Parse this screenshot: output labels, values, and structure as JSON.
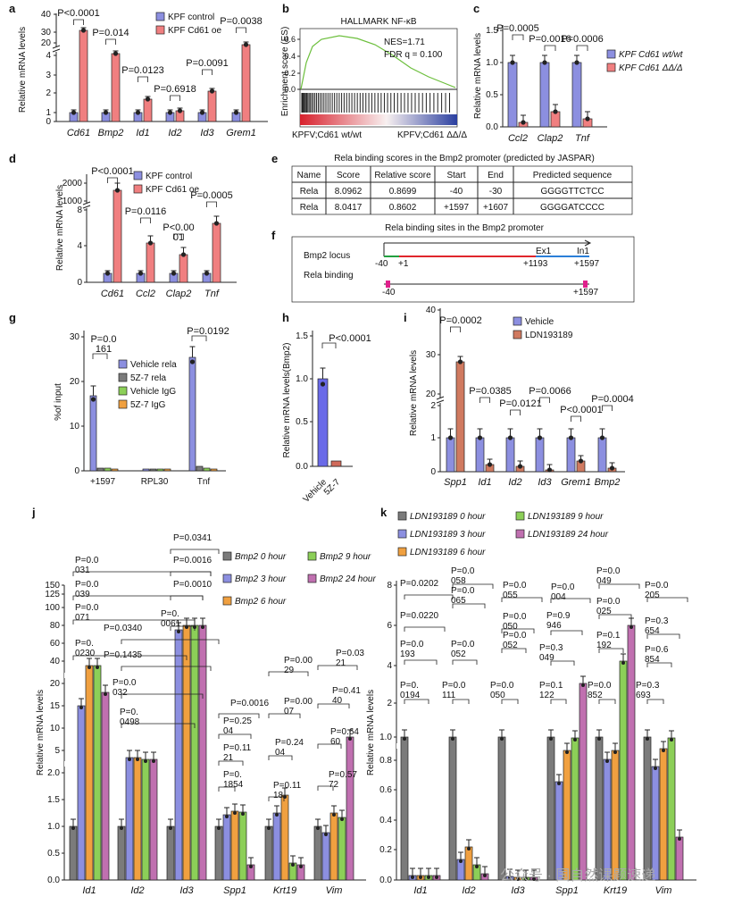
{
  "panels": {
    "a": {
      "label": "a",
      "ylabel": "Relative mRNA levels",
      "legend": [
        "KPF control",
        "KPF Cd61 oe"
      ],
      "yticks": [
        "0",
        "1",
        "2",
        "3",
        "4",
        "20",
        "30",
        "40"
      ],
      "genes": [
        "Cd61",
        "Bmp2",
        "Id1",
        "Id2",
        "Id3",
        "Grem1"
      ],
      "pvals": [
        "P<0.0001",
        "P=0.014",
        "P=0.0123",
        "P=0.6918",
        "P=0.0091",
        "P=0.0038"
      ],
      "colors": [
        "#8c8fe0",
        "#f07f80"
      ]
    },
    "b": {
      "label": "b",
      "title": "HALLMARK NF-κB",
      "ylabel": "Enrichment score (ES)",
      "nes": "NES=1.71",
      "fdr": "FDR q = 0.100",
      "yticks": [
        "0.0",
        "0.2",
        "0.4",
        "0.6"
      ],
      "left": "KPFV;Cd61 wt/wt",
      "right": "KPFV;Cd61 ΔΔ/Δ"
    },
    "c": {
      "label": "c",
      "ylabel": "Relative mRNA levels",
      "legend": [
        "KPF Cd61 wt/wt",
        "KPF Cd61 ΔΔ/Δ"
      ],
      "yticks": [
        "0.0",
        "0.5",
        "1.0",
        "1.5"
      ],
      "genes": [
        "Ccl2",
        "Clap2",
        "Tnf"
      ],
      "pvals": [
        "P=0.0005",
        "P=0.0016",
        "P=0.0006"
      ]
    },
    "d": {
      "label": "d",
      "ylabel": "Relative mRNA levels",
      "legend": [
        "KPF control",
        "KPF Cd61 oe"
      ],
      "yticks": [
        "0",
        "4",
        "8",
        "1000",
        "2000"
      ],
      "genes": [
        "Cd61",
        "Ccl2",
        "Clap2",
        "Tnf"
      ],
      "pvals": [
        "P<0.0001",
        "P=0.0116",
        "P<0.00\n01",
        "P=0.0005"
      ]
    },
    "e": {
      "label": "e",
      "title": "Rela binding scores in the Bmp2 promoter (predicted by JASPAR)",
      "headers": [
        "Name",
        "Score",
        "Relative score",
        "Start",
        "End",
        "Predicted sequence"
      ],
      "rows": [
        [
          "Rela",
          "8.0962",
          "0.8699",
          "-40",
          "-30",
          "GGGGTTCTCC"
        ],
        [
          "Rela",
          "8.0417",
          "0.8602",
          "+1597",
          "+1607",
          "GGGGATCCCC"
        ]
      ]
    },
    "f": {
      "label": "f",
      "title": "Rela binding sites in the Bmp2 promoter",
      "locus": "Bmp2 locus",
      "binding": "Rela binding",
      "ex1": "Ex1",
      "in1": "In1",
      "pos": [
        "-40",
        "+1",
        "+1193",
        "+1597",
        "-40",
        "+1597"
      ]
    },
    "g": {
      "label": "g",
      "ylabel": "%of input",
      "legend": [
        "Vehicle rela",
        "5Z-7 rela",
        "Vehicle IgG",
        "5Z-7 IgG"
      ],
      "yticks": [
        "0",
        "10",
        "20",
        "30"
      ],
      "cats": [
        "+1597",
        "RPL30",
        "Tnf"
      ],
      "pvals": [
        "P=0.0\n161",
        "P=0.0192"
      ],
      "colors": [
        "#8c8fe0",
        "#7b7b7b",
        "#8ccf58",
        "#f0a040"
      ]
    },
    "h": {
      "label": "h",
      "ylabel": "Relative mRNA levels(Bmp2)",
      "yticks": [
        "0.0",
        "0.5",
        "1.0",
        "1.5"
      ],
      "cats": [
        "Vehicle",
        "5Z-7"
      ],
      "pval": "P<0.0001"
    },
    "i": {
      "label": "i",
      "ylabel": "Relative mRNA levels",
      "legend": [
        "Vehicle",
        "LDN193189"
      ],
      "yticks": [
        "0",
        "1",
        "2",
        "20",
        "30",
        "40"
      ],
      "genes": [
        "Spp1",
        "Id1",
        "Id2",
        "Id3",
        "Grem1",
        "Bmp2"
      ],
      "pvals": [
        "P=0.0002",
        "P=0.0385",
        "P=0.0121",
        "P=0.0066",
        "P<0.0001",
        "P=0.0004"
      ],
      "colors": [
        "#8c8fe0",
        "#d07a60"
      ]
    },
    "j": {
      "label": "j",
      "ylabel": "Relative mRNA levels",
      "legend": [
        "Bmp2 0 hour",
        "Bmp2 3 hour",
        "Bmp2 6 hour",
        "Bmp2 9 hour",
        "Bmp2 24 hour"
      ],
      "yticks": [
        "0.0",
        "0.5",
        "1.0",
        "1.5",
        "2.0",
        "5",
        "10",
        "15",
        "20",
        "40",
        "60",
        "80",
        "100",
        "125",
        "150"
      ],
      "genes": [
        "Id1",
        "Id2",
        "Id3",
        "Spp1",
        "Krt19",
        "Vim"
      ]
    },
    "k": {
      "label": "k",
      "ylabel": "Relative mRNA levels",
      "legend": [
        "LDN193189 0 hour",
        "LDN193189 3 hour",
        "LDN193189 6 hour",
        "LDN193189 9 hour",
        "LDN193189 24 hour"
      ],
      "yticks": [
        "0.0",
        "0.2",
        "0.4",
        "0.6",
        "0.8",
        "1.0",
        "2",
        "4",
        "6",
        "8"
      ],
      "genes": [
        "Id1",
        "Id2",
        "Id3",
        "Spp1",
        "Krt19",
        "Vim"
      ]
    }
  },
  "colors5": [
    "#7b7b7b",
    "#8c8fe0",
    "#f0a040",
    "#8ccf58",
    "#c070b0"
  ],
  "watermark": "公众号 · 国自然课题速递"
}
